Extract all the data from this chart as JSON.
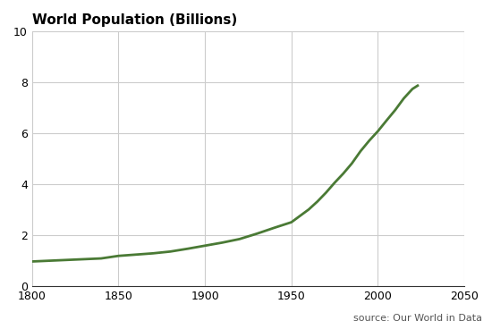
{
  "title": "World Population (Billions)",
  "source_text": "source: Our World in Data",
  "line_color": "#4a7a35",
  "line_width": 2.0,
  "background_color": "#ffffff",
  "grid_color": "#cccccc",
  "xlim": [
    1800,
    2050
  ],
  "ylim": [
    0,
    10
  ],
  "xticks": [
    1800,
    1850,
    1900,
    1950,
    2000,
    2050
  ],
  "yticks": [
    0,
    2,
    4,
    6,
    8,
    10
  ],
  "years": [
    1800,
    1810,
    1820,
    1830,
    1840,
    1850,
    1860,
    1870,
    1880,
    1890,
    1900,
    1910,
    1920,
    1930,
    1940,
    1950,
    1955,
    1960,
    1965,
    1970,
    1975,
    1980,
    1985,
    1990,
    1995,
    2000,
    2005,
    2010,
    2015,
    2020,
    2023
  ],
  "population": [
    0.98,
    1.01,
    1.04,
    1.07,
    1.1,
    1.2,
    1.25,
    1.3,
    1.37,
    1.48,
    1.6,
    1.72,
    1.86,
    2.07,
    2.3,
    2.52,
    2.77,
    3.02,
    3.33,
    3.68,
    4.07,
    4.43,
    4.83,
    5.31,
    5.72,
    6.09,
    6.51,
    6.92,
    7.38,
    7.75,
    7.88
  ]
}
